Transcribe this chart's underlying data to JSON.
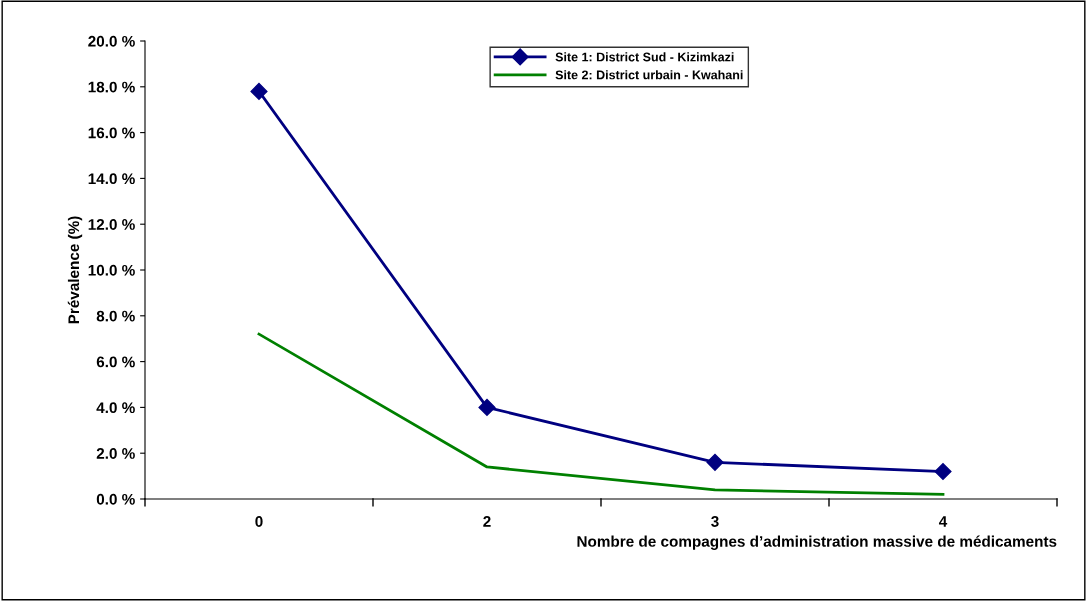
{
  "chart_data": {
    "type": "line",
    "xlabel": "Nombre de compagnes d’administration massive de médicaments",
    "ylabel": "Prévalence (%)",
    "categories": [
      "0",
      "2",
      "3",
      "4"
    ],
    "series": [
      {
        "name": "Site 1: District Sud - Kizimkazi",
        "color": "#000080",
        "marker": "diamond",
        "values": [
          17.8,
          4.0,
          1.6,
          1.2
        ]
      },
      {
        "name": "Site 2: District urbain - Kwahani",
        "color": "#008000",
        "marker": "none",
        "values": [
          7.2,
          1.4,
          0.4,
          0.2
        ]
      }
    ],
    "ylim": [
      0,
      20
    ],
    "yticks": [
      {
        "value": 0,
        "label": "0.0 %"
      },
      {
        "value": 2,
        "label": "2.0 %"
      },
      {
        "value": 4,
        "label": "4.0 %"
      },
      {
        "value": 6,
        "label": "6.0 %"
      },
      {
        "value": 8,
        "label": "8.0 %"
      },
      {
        "value": 10,
        "label": "10.0 %"
      },
      {
        "value": 12,
        "label": "12.0 %"
      },
      {
        "value": 14,
        "label": "14.0 %"
      },
      {
        "value": 16,
        "label": "16.0 %"
      },
      {
        "value": 18,
        "label": "18.0 %"
      },
      {
        "value": 20,
        "label": "20.0 %"
      }
    ],
    "grid": false,
    "legend": "top",
    "line_style": "solid"
  }
}
